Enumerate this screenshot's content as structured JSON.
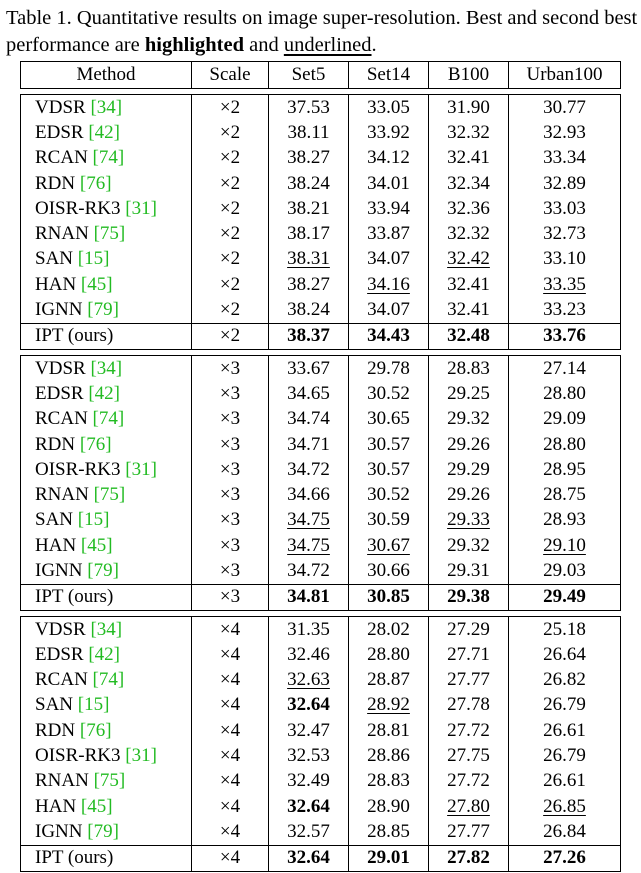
{
  "caption": {
    "part1": "Table 1. Quantitative results on image super-resolution. Best and second best performance are ",
    "bold_word": "highlighted",
    "middle": " and ",
    "underline_word": "underlined",
    "end": "."
  },
  "table": {
    "headers": [
      "Method",
      "Scale",
      "Set5",
      "Set14",
      "B100",
      "Urban100"
    ],
    "groups": [
      {
        "rows": [
          {
            "name": "VDSR",
            "cite": "[34]",
            "scale": "×2",
            "values": [
              "37.53",
              "33.05",
              "31.90",
              "30.77"
            ]
          },
          {
            "name": "EDSR",
            "cite": "[42]",
            "scale": "×2",
            "values": [
              "38.11",
              "33.92",
              "32.32",
              "32.93"
            ]
          },
          {
            "name": "RCAN",
            "cite": "[74]",
            "scale": "×2",
            "values": [
              "38.27",
              "34.12",
              "32.41",
              "33.34"
            ]
          },
          {
            "name": "RDN",
            "cite": "[76]",
            "scale": "×2",
            "values": [
              "38.24",
              "34.01",
              "32.34",
              "32.89"
            ]
          },
          {
            "name": "OISR-RK3",
            "cite": "[31]",
            "scale": "×2",
            "values": [
              "38.21",
              "33.94",
              "32.36",
              "33.03"
            ]
          },
          {
            "name": "RNAN",
            "cite": "[75]",
            "scale": "×2",
            "values": [
              "38.17",
              "33.87",
              "32.32",
              "32.73"
            ]
          },
          {
            "name": "SAN",
            "cite": "[15]",
            "scale": "×2",
            "values": [
              "38.31",
              "34.07",
              "32.42",
              "33.10"
            ],
            "underline": [
              0,
              2
            ]
          },
          {
            "name": "HAN",
            "cite": "[45]",
            "scale": "×2",
            "values": [
              "38.27",
              "34.16",
              "32.41",
              "33.35"
            ],
            "underline": [
              1,
              3
            ]
          },
          {
            "name": "IGNN",
            "cite": "[79]",
            "scale": "×2",
            "values": [
              "38.24",
              "34.07",
              "32.41",
              "33.23"
            ]
          }
        ],
        "ipt": {
          "name": "IPT (ours)",
          "scale": "×2",
          "values": [
            "38.37",
            "34.43",
            "32.48",
            "33.76"
          ]
        }
      },
      {
        "rows": [
          {
            "name": "VDSR",
            "cite": "[34]",
            "scale": "×3",
            "values": [
              "33.67",
              "29.78",
              "28.83",
              "27.14"
            ]
          },
          {
            "name": "EDSR",
            "cite": "[42]",
            "scale": "×3",
            "values": [
              "34.65",
              "30.52",
              "29.25",
              "28.80"
            ]
          },
          {
            "name": "RCAN",
            "cite": "[74]",
            "scale": "×3",
            "values": [
              "34.74",
              "30.65",
              "29.32",
              "29.09"
            ]
          },
          {
            "name": "RDN",
            "cite": "[76]",
            "scale": "×3",
            "values": [
              "34.71",
              "30.57",
              "29.26",
              "28.80"
            ]
          },
          {
            "name": "OISR-RK3",
            "cite": "[31]",
            "scale": "×3",
            "values": [
              "34.72",
              "30.57",
              "29.29",
              "28.95"
            ]
          },
          {
            "name": "RNAN",
            "cite": "[75]",
            "scale": "×3",
            "values": [
              "34.66",
              "30.52",
              "29.26",
              "28.75"
            ]
          },
          {
            "name": "SAN",
            "cite": "[15]",
            "scale": "×3",
            "values": [
              "34.75",
              "30.59",
              "29.33",
              "28.93"
            ],
            "underline": [
              0,
              2
            ]
          },
          {
            "name": "HAN",
            "cite": "[45]",
            "scale": "×3",
            "values": [
              "34.75",
              "30.67",
              "29.32",
              "29.10"
            ],
            "underline": [
              0,
              1,
              3
            ]
          },
          {
            "name": "IGNN",
            "cite": "[79]",
            "scale": "×3",
            "values": [
              "34.72",
              "30.66",
              "29.31",
              "29.03"
            ]
          }
        ],
        "ipt": {
          "name": "IPT (ours)",
          "scale": "×3",
          "values": [
            "34.81",
            "30.85",
            "29.38",
            "29.49"
          ]
        }
      },
      {
        "rows": [
          {
            "name": "VDSR",
            "cite": "[34]",
            "scale": "×4",
            "values": [
              "31.35",
              "28.02",
              "27.29",
              "25.18"
            ]
          },
          {
            "name": "EDSR",
            "cite": "[42]",
            "scale": "×4",
            "values": [
              "32.46",
              "28.80",
              "27.71",
              "26.64"
            ]
          },
          {
            "name": "RCAN",
            "cite": "[74]",
            "scale": "×4",
            "values": [
              "32.63",
              "28.87",
              "27.77",
              "26.82"
            ],
            "underline": [
              0
            ]
          },
          {
            "name": "SAN",
            "cite": "[15]",
            "scale": "×4",
            "values": [
              "32.64",
              "28.92",
              "27.78",
              "26.79"
            ],
            "bold": [
              0
            ],
            "underline": [
              1
            ]
          },
          {
            "name": "RDN",
            "cite": "[76]",
            "scale": "×4",
            "values": [
              "32.47",
              "28.81",
              "27.72",
              "26.61"
            ]
          },
          {
            "name": "OISR-RK3",
            "cite": "[31]",
            "scale": "×4",
            "values": [
              "32.53",
              "28.86",
              "27.75",
              "26.79"
            ]
          },
          {
            "name": "RNAN",
            "cite": "[75]",
            "scale": "×4",
            "values": [
              "32.49",
              "28.83",
              "27.72",
              "26.61"
            ]
          },
          {
            "name": "HAN",
            "cite": "[45]",
            "scale": "×4",
            "values": [
              "32.64",
              "28.90",
              "27.80",
              "26.85"
            ],
            "bold": [
              0
            ],
            "underline": [
              2,
              3
            ]
          },
          {
            "name": "IGNN",
            "cite": "[79]",
            "scale": "×4",
            "values": [
              "32.57",
              "28.85",
              "27.77",
              "26.84"
            ]
          }
        ],
        "ipt": {
          "name": "IPT (ours)",
          "scale": "×4",
          "values": [
            "32.64",
            "29.01",
            "27.82",
            "27.26"
          ]
        }
      }
    ]
  },
  "colors": {
    "citation": "#22bb22"
  }
}
